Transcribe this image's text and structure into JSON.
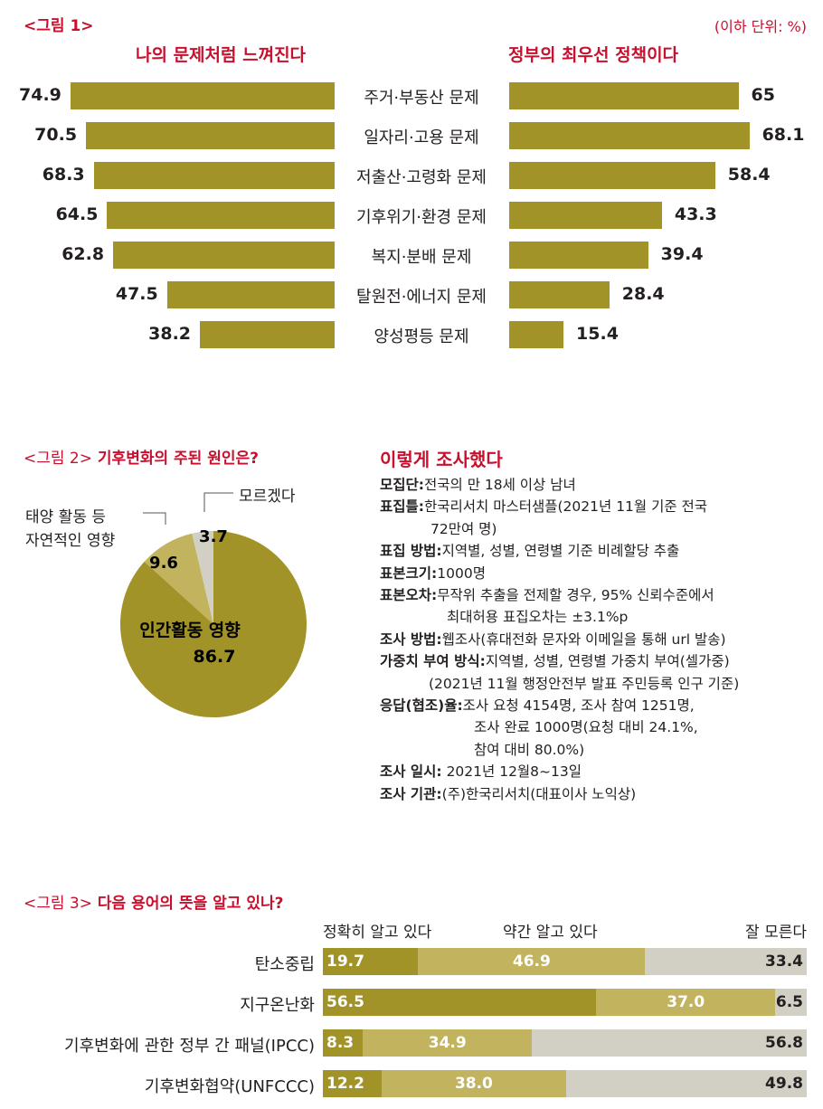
{
  "figure1": {
    "label": "<그림 1>",
    "unit": "(이하 단위: %)",
    "left_title": "나의 문제처럼 느껴진다",
    "right_title": "정부의 최우선 정책이다",
    "chart_data": {
      "type": "bar",
      "orientation": "horizontal",
      "categories": [
        "주거·부동산 문제",
        "일자리·고용 문제",
        "저출산·고령화 문제",
        "기후위기·환경 문제",
        "복지·분배 문제",
        "탈원전·에너지 문제",
        "양성평등 문제"
      ],
      "series": [
        {
          "name": "나의 문제처럼 느껴진다",
          "values": [
            74.9,
            70.5,
            68.3,
            64.5,
            62.8,
            47.5,
            38.2
          ]
        },
        {
          "name": "정부의 최우선 정책이다",
          "values": [
            65,
            68.1,
            58.4,
            43.3,
            39.4,
            28.4,
            15.4
          ]
        }
      ],
      "value_labels": {
        "left": [
          "74.9",
          "70.5",
          "68.3",
          "64.5",
          "62.8",
          "47.5",
          "38.2"
        ],
        "right": [
          "65",
          "68.1",
          "58.4",
          "43.3",
          "39.4",
          "28.4",
          "15.4"
        ]
      }
    }
  },
  "figure2": {
    "label": "<그림 2>",
    "title": "기후변화의 주된 원인은?",
    "chart_data": {
      "type": "pie",
      "slices": [
        {
          "name": "인간활동 영향",
          "value": 86.7,
          "label": "86.7"
        },
        {
          "name": "태양 활동 등 자연적인 영향",
          "value": 9.6,
          "label": "9.6"
        },
        {
          "name": "모르겠다",
          "value": 3.7,
          "label": "3.7"
        }
      ],
      "callouts": {
        "natural_line1": "태양 활동 등",
        "natural_line2": "자연적인 영향",
        "unknown": "모르겠다",
        "human": "인간활동 영향"
      },
      "colors": {
        "human": "#a19327",
        "natural": "#c2b35e",
        "unknown": "#d2cfc5"
      }
    }
  },
  "survey": {
    "title": "이렇게 조사했다",
    "rows": [
      {
        "label": "모집단:",
        "lines": [
          "전국의 만 18세 이상 남녀"
        ]
      },
      {
        "label": "표집틀:",
        "lines": [
          "한국리서치 마스터샘플(2021년 11월 기준 전국",
          "72만여 명)"
        ]
      },
      {
        "label": "표집 방법:",
        "lines": [
          "지역별, 성별, 연령별 기준 비례할당 추출"
        ]
      },
      {
        "label": "표본크기:",
        "lines": [
          "1000명"
        ]
      },
      {
        "label": "표본오차:",
        "lines": [
          "무작위 추출을 전제할 경우, 95% 신뢰수준에서",
          "최대허용 표집오차는 ±3.1%p"
        ]
      },
      {
        "label": "조사 방법:",
        "lines": [
          "웹조사(휴대전화 문자와 이메일을 통해 url 발송)"
        ]
      },
      {
        "label": "가중치 부여 방식:",
        "lines": [
          "지역별, 성별, 연령별 가중치 부여(셀가중)",
          "(2021년 11월 행정안전부 발표 주민등록 인구 기준)"
        ]
      },
      {
        "label": "응답(협조)율:",
        "lines": [
          "조사 요청 4154명, 조사 참여 1251명,",
          "조사 완료 1000명(요청 대비 24.1%,",
          "참여 대비 80.0%)"
        ]
      },
      {
        "label": "조사 일시:",
        "lines": [
          " 2021년 12월8~13일"
        ]
      },
      {
        "label": "조사 기관:",
        "lines": [
          "(주)한국리서치(대표이사 노익상)"
        ]
      }
    ]
  },
  "figure3": {
    "label": "<그림 3>",
    "title": "다음 용어의 뜻을 알고 있나?",
    "chart_data": {
      "type": "bar",
      "orientation": "horizontal",
      "stacked": true,
      "normalized": true,
      "categories": [
        "탄소중립",
        "지구온난화",
        "기후변화에 관한 정부 간 패널(IPCC)",
        "기후변화협약(UNFCCC)"
      ],
      "series": [
        {
          "name": "정확히 알고 있다",
          "values": [
            19.7,
            56.5,
            8.3,
            12.2
          ],
          "labels": [
            "19.7",
            "56.5",
            "8.3",
            "12.2"
          ],
          "color": "#a19327"
        },
        {
          "name": "약간 알고 있다",
          "values": [
            46.9,
            37.0,
            34.9,
            38.0
          ],
          "labels": [
            "46.9",
            "37.0",
            "34.9",
            "38.0"
          ],
          "color": "#c2b35e"
        },
        {
          "name": "잘 모른다",
          "values": [
            33.4,
            6.5,
            56.8,
            49.8
          ],
          "labels": [
            "33.4",
            "6.5",
            "56.8",
            "49.8"
          ],
          "color": "#d2cfc5"
        }
      ]
    }
  }
}
